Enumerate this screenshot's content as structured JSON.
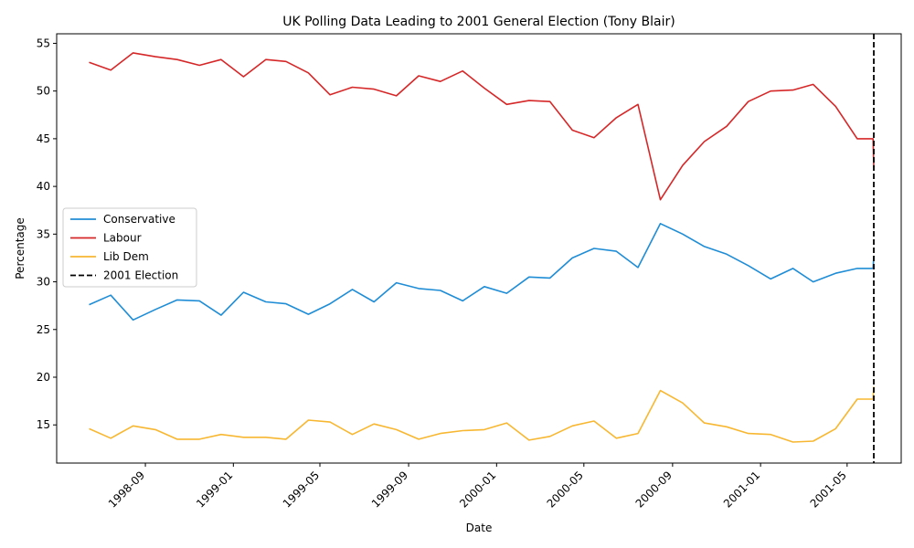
{
  "chart_data": {
    "type": "line",
    "title": "UK Polling Data Leading to 2001 General Election (Tony Blair)",
    "xlabel": "Date",
    "ylabel": "Percentage",
    "xlim": [
      "1998-05-01",
      "2001-07-15"
    ],
    "ylim": [
      11.0,
      56.0
    ],
    "y_ticks": [
      15,
      20,
      25,
      30,
      35,
      40,
      45,
      50,
      55
    ],
    "x_ticks": [
      "1998-09",
      "1999-01",
      "1999-05",
      "1999-09",
      "2000-01",
      "2000-05",
      "2000-09",
      "2001-01",
      "2001-05"
    ],
    "legend_position": "center-left",
    "grid": false,
    "x": [
      "1998-06-15",
      "1998-07-15",
      "1998-08-15",
      "1998-09-15",
      "1998-10-15",
      "1998-11-15",
      "1998-12-15",
      "1999-01-15",
      "1999-02-15",
      "1999-03-15",
      "1999-04-15",
      "1999-05-15",
      "1999-06-15",
      "1999-07-15",
      "1999-08-15",
      "1999-09-15",
      "1999-10-15",
      "1999-11-15",
      "1999-12-15",
      "2000-01-15",
      "2000-02-15",
      "2000-03-15",
      "2000-04-15",
      "2000-05-15",
      "2000-06-15",
      "2000-07-15",
      "2000-08-15",
      "2000-09-15",
      "2000-10-15",
      "2000-11-15",
      "2000-12-15",
      "2001-01-15",
      "2001-02-15",
      "2001-03-15",
      "2001-04-15",
      "2001-05-15",
      "2001-06-06",
      "2001-06-07"
    ],
    "series": [
      {
        "name": "Conservative",
        "color": "#1f8dd6",
        "values": [
          27.6,
          28.6,
          26.0,
          27.1,
          28.1,
          28.0,
          26.5,
          28.9,
          27.9,
          27.7,
          26.6,
          27.7,
          29.2,
          27.9,
          29.9,
          29.3,
          29.1,
          28.0,
          29.5,
          28.8,
          30.5,
          30.4,
          32.5,
          33.5,
          33.2,
          31.5,
          36.1,
          35.0,
          33.7,
          32.9,
          31.7,
          30.3,
          31.4,
          30.0,
          30.9,
          31.4,
          31.4,
          32.7
        ]
      },
      {
        "name": "Labour",
        "color": "#d62728",
        "values": [
          53.0,
          52.2,
          54.0,
          53.6,
          53.3,
          52.7,
          53.3,
          51.5,
          53.3,
          53.1,
          51.9,
          49.6,
          50.4,
          50.2,
          49.5,
          51.6,
          51.0,
          52.1,
          50.3,
          48.6,
          49.0,
          48.9,
          45.9,
          45.1,
          47.2,
          48.6,
          38.6,
          42.2,
          44.7,
          46.3,
          48.9,
          50.0,
          50.1,
          50.7,
          48.4,
          45.0,
          45.0,
          42.0
        ]
      },
      {
        "name": "Lib Dem",
        "color": "#f7b731",
        "values": [
          14.6,
          13.6,
          14.9,
          14.5,
          13.5,
          13.5,
          14.0,
          13.7,
          13.7,
          13.5,
          15.5,
          15.3,
          14.0,
          15.1,
          14.5,
          13.5,
          14.1,
          14.4,
          14.5,
          15.2,
          13.4,
          13.8,
          14.9,
          15.4,
          13.6,
          14.1,
          18.6,
          17.3,
          15.2,
          14.8,
          14.1,
          14.0,
          13.2,
          13.3,
          14.6,
          17.7,
          17.7,
          19.0
        ]
      }
    ],
    "vline": {
      "x": "2001-06-07",
      "label": "2001 Election",
      "color": "#000000",
      "style": "dashed"
    }
  }
}
